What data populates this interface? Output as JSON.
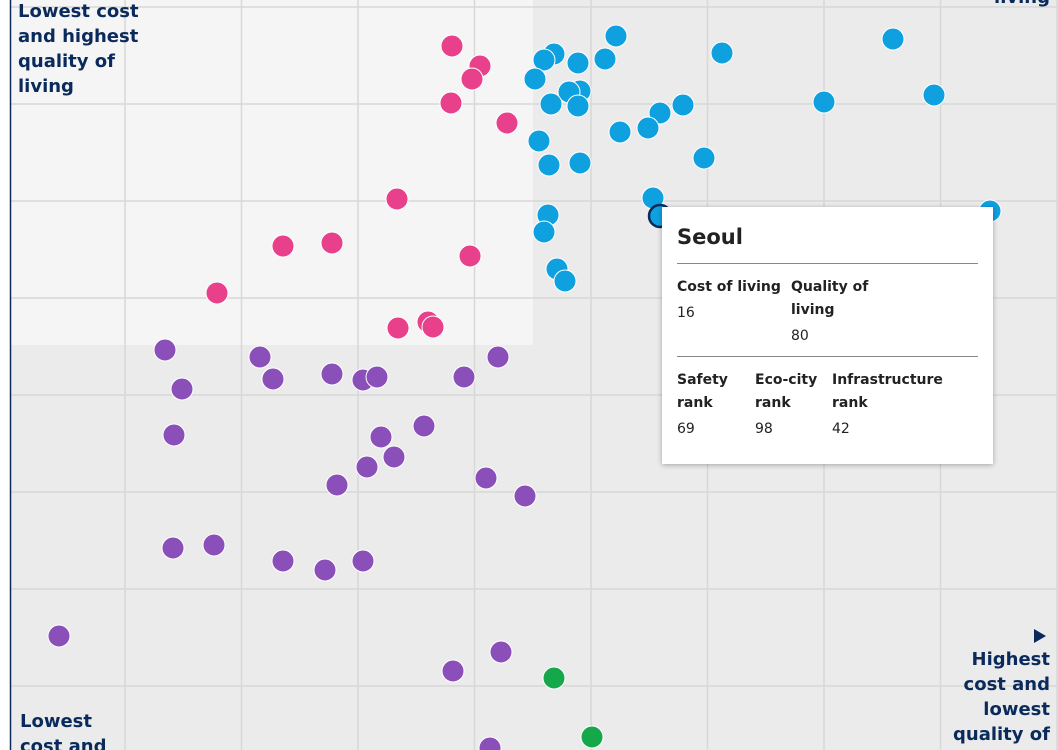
{
  "chart_data": {
    "type": "scatter",
    "xlim": [
      0,
      1048
    ],
    "ylim": [
      0,
      750
    ],
    "series": [
      {
        "color": "#e8408a",
        "x": [
          442,
          470,
          462,
          441,
          497,
          387,
          273,
          322,
          460,
          207,
          388,
          418,
          423
        ],
        "values": [
          704,
          684,
          671,
          647,
          627,
          551,
          504,
          507,
          494,
          457,
          422,
          428,
          423
        ]
      },
      {
        "color": "#0fa0e0",
        "x": [
          606,
          544,
          534,
          568,
          595,
          712,
          883,
          924,
          525,
          570,
          559,
          568,
          541,
          650,
          673,
          814,
          638,
          610,
          529,
          539,
          570,
          694,
          643,
          980,
          538,
          534,
          547,
          555,
          650
        ],
        "values": [
          714,
          696,
          690,
          687,
          691,
          697,
          711,
          655,
          671,
          659,
          658,
          644,
          646,
          637,
          645,
          648,
          622,
          618,
          609,
          585,
          587,
          592,
          552,
          539,
          535,
          518,
          481,
          469,
          534
        ]
      },
      {
        "color": "#8a4fb8",
        "x": [
          155,
          250,
          172,
          263,
          322,
          353,
          367,
          454,
          488,
          164,
          371,
          414,
          357,
          384,
          327,
          476,
          515,
          163,
          204,
          273,
          315,
          353,
          49,
          443,
          491,
          480
        ],
        "values": [
          400,
          393,
          361,
          371,
          376,
          370,
          373,
          373,
          393,
          315,
          313,
          324,
          283,
          293,
          265,
          272,
          254,
          202,
          205,
          189,
          180,
          189,
          114,
          79,
          98,
          2
        ]
      },
      {
        "color": "#15a84a",
        "x": [
          544,
          582
        ],
        "values": [
          72,
          13
        ]
      }
    ],
    "highlight": {
      "series": 1,
      "index": 28
    },
    "annotations": [
      {
        "corner": "top-left",
        "lines": [
          "Lowest cost",
          "and highest",
          "quality of",
          "living"
        ]
      },
      {
        "corner": "top-right",
        "lines": [
          "living"
        ]
      },
      {
        "corner": "bottom-right",
        "lines": [
          "Highest",
          "cost and",
          "lowest",
          "quality of"
        ]
      },
      {
        "corner": "bottom-left",
        "lines": [
          "Lowest",
          "cost and"
        ]
      }
    ]
  },
  "tooltip": {
    "title": "Seoul",
    "groups": [
      [
        {
          "label": "Cost of living",
          "value": 16
        },
        {
          "label": "Quality of living",
          "value": 80
        }
      ],
      [
        {
          "label": "Safety rank",
          "value": 69
        },
        {
          "label": "Eco-city rank",
          "value": 98
        },
        {
          "label": "Infrastructure rank",
          "value": 42
        }
      ]
    ]
  }
}
